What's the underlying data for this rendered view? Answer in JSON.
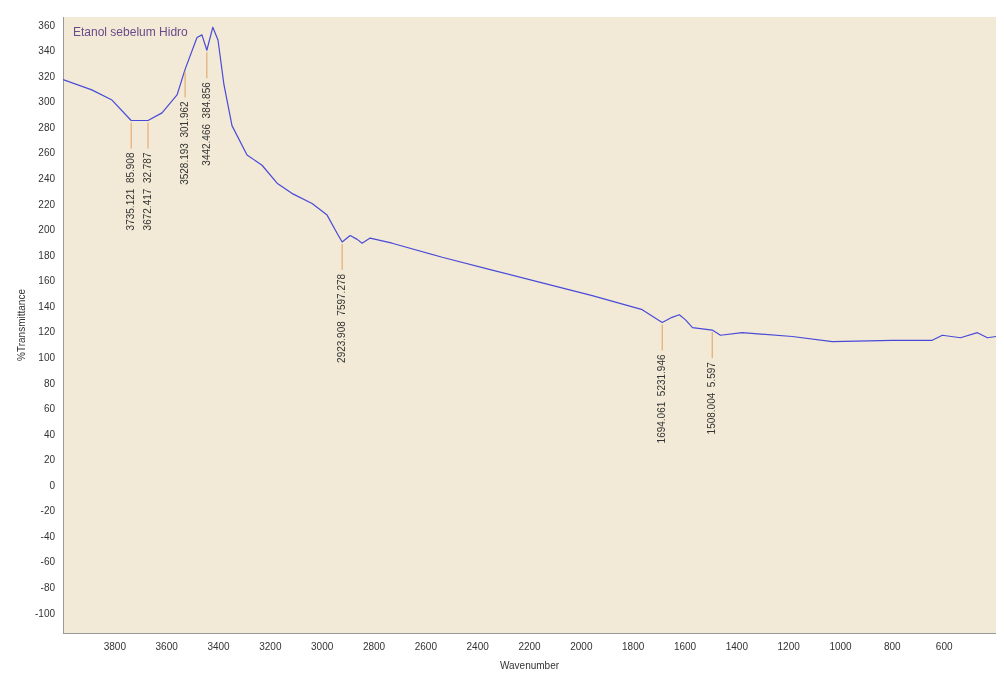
{
  "chart_data": {
    "type": "line",
    "title": "Etanol sebelum Hidro",
    "xlabel": "Wavenumber",
    "ylabel": "%Transmittance",
    "x": [
      4000,
      3889,
      3811,
      3737,
      3672,
      3618,
      3560,
      3529,
      3483,
      3464,
      3445,
      3422,
      3402,
      3379,
      3348,
      3290,
      3232,
      3174,
      3117,
      3039,
      2981,
      2943,
      2923,
      2892,
      2865,
      2846,
      2815,
      2730,
      2537,
      2344,
      2151,
      1958,
      1765,
      1688,
      1650,
      1622,
      1598,
      1571,
      1495,
      1463,
      1379,
      1186,
      1032,
      800,
      646,
      607,
      537,
      472,
      433,
      400
    ],
    "series": [
      {
        "color": "#4a4ad8",
        "values": [
          318,
          310,
          302,
          286,
          286,
          292,
          306,
          326,
          351,
          353,
          341,
          359,
          349,
          314,
          282,
          259,
          251,
          237,
          229,
          221,
          212,
          198,
          191,
          196,
          193,
          190,
          194,
          190,
          179,
          169,
          159,
          149,
          138,
          128,
          132,
          134,
          130,
          124,
          122,
          118,
          120,
          117,
          113,
          114,
          114,
          118,
          116,
          120,
          116,
          117
        ]
      }
    ],
    "xlim": [
      4000,
      400
    ],
    "ylim": [
      -115,
      367
    ],
    "xticks": [
      3800,
      3600,
      3400,
      3200,
      3000,
      2800,
      2600,
      2400,
      2200,
      2000,
      1800,
      1600,
      1400,
      1200,
      1000,
      800,
      600
    ],
    "yticks": [
      -100,
      -80,
      -60,
      -40,
      -20,
      0,
      20,
      40,
      60,
      80,
      100,
      120,
      140,
      160,
      180,
      200,
      220,
      240,
      260,
      280,
      300,
      320,
      340,
      360
    ],
    "grid": false,
    "legend": false,
    "marker": "none",
    "line_style": "solid",
    "annotations": [
      {
        "text": "3735.121  85.908",
        "x": 3737,
        "y": 286
      },
      {
        "text": "3672.417  32.787",
        "x": 3672,
        "y": 286
      },
      {
        "text": "3528.193  301.962",
        "x": 3529,
        "y": 326
      },
      {
        "text": "3442.466  384.856",
        "x": 3445,
        "y": 341
      },
      {
        "text": "2923.908  7597.278",
        "x": 2923,
        "y": 191
      },
      {
        "text": "1694.061  5231.946",
        "x": 1688,
        "y": 128
      },
      {
        "text": "1508.004  5.597",
        "x": 1495,
        "y": 122
      }
    ]
  }
}
